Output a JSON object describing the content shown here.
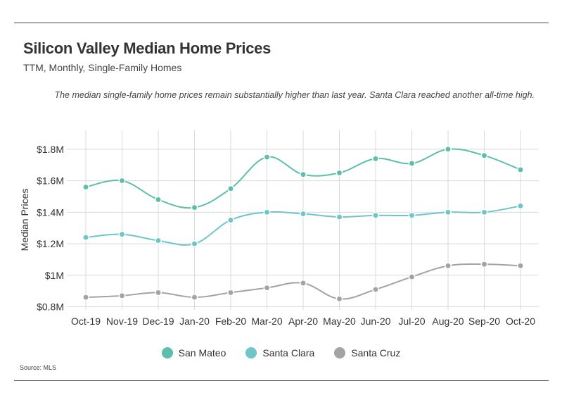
{
  "header": {
    "title": "Silicon Valley Median Home Prices",
    "subtitle": "TTM, Monthly, Single-Family Homes",
    "annotation": "The median single-family home prices remain substantially higher than last year. Santa Clara reached another all-time high."
  },
  "source": "Source:  MLS",
  "colors": {
    "san_mateo": "#5cbfab",
    "santa_clara": "#6ec6c9",
    "santa_cruz": "#a3a3a3",
    "grid": "#d9d9d9"
  },
  "chart_data": {
    "type": "line",
    "categories": [
      "Oct-19",
      "Nov-19",
      "Dec-19",
      "Jan-20",
      "Feb-20",
      "Mar-20",
      "Apr-20",
      "May-20",
      "Jun-20",
      "Jul-20",
      "Aug-20",
      "Sep-20",
      "Oct-20"
    ],
    "series": [
      {
        "name": "San Mateo",
        "color": "#5cbfab",
        "values": [
          1.56,
          1.6,
          1.48,
          1.43,
          1.55,
          1.75,
          1.64,
          1.65,
          1.74,
          1.71,
          1.8,
          1.76,
          1.67
        ]
      },
      {
        "name": "Santa Clara",
        "color": "#6ec6c9",
        "values": [
          1.24,
          1.26,
          1.22,
          1.2,
          1.35,
          1.4,
          1.39,
          1.37,
          1.38,
          1.38,
          1.4,
          1.4,
          1.44
        ]
      },
      {
        "name": "Santa Cruz",
        "color": "#a3a3a3",
        "values": [
          0.86,
          0.87,
          0.89,
          0.86,
          0.89,
          0.92,
          0.95,
          0.85,
          0.91,
          0.99,
          1.06,
          1.07,
          1.06
        ]
      }
    ],
    "yticks": [
      0.8,
      1.0,
      1.2,
      1.4,
      1.6,
      1.8
    ],
    "ytick_labels": [
      "$0.8M",
      "$1M",
      "$1.2M",
      "$1.4M",
      "$1.6M",
      "$1.8M"
    ],
    "ylim": [
      0.78,
      1.92
    ],
    "ylabel": "Median Prices",
    "xlabel": "",
    "grid": true,
    "legend_position": "bottom"
  }
}
